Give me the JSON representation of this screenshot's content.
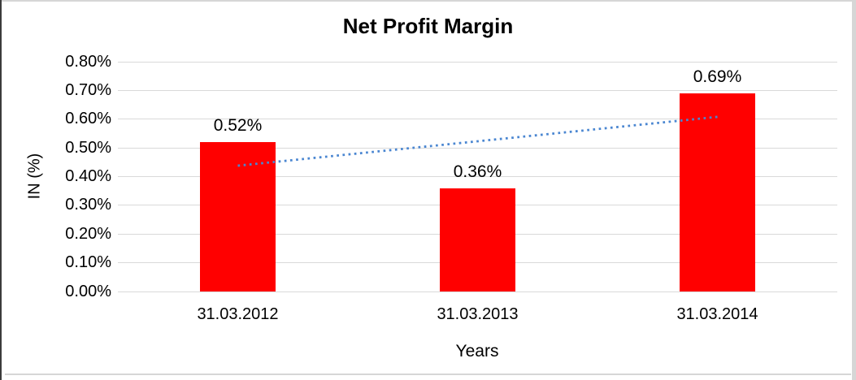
{
  "chart_data": {
    "type": "bar",
    "title": "Net Profit Margin",
    "xlabel": "Years",
    "ylabel": "IN (%)",
    "categories": [
      "31.03.2012",
      "31.03.2013",
      "31.03.2014"
    ],
    "values": [
      0.52,
      0.36,
      0.69
    ],
    "bar_labels": [
      "0.52%",
      "0.36%",
      "0.69%"
    ],
    "bar_color": "#ff0000",
    "ylim": [
      0,
      0.8
    ],
    "y_ticks": [
      {
        "value": 0.8,
        "label": "0.80%"
      },
      {
        "value": 0.7,
        "label": "0.70%"
      },
      {
        "value": 0.6,
        "label": "0.60%"
      },
      {
        "value": 0.5,
        "label": "0.50%"
      },
      {
        "value": 0.4,
        "label": "0.40%"
      },
      {
        "value": 0.3,
        "label": "0.30%"
      },
      {
        "value": 0.2,
        "label": "0.20%"
      },
      {
        "value": 0.1,
        "label": "0.10%"
      },
      {
        "value": 0.0,
        "label": "0.00%"
      }
    ],
    "grid": true,
    "gridline_color": "#d9d9d9",
    "legend": "none",
    "trendline": {
      "type": "linear",
      "style": "dotted",
      "color": "#4a86d1",
      "start_value": 0.438,
      "end_value": 0.608,
      "from_category_index": 0,
      "to_category_index": 2
    }
  }
}
